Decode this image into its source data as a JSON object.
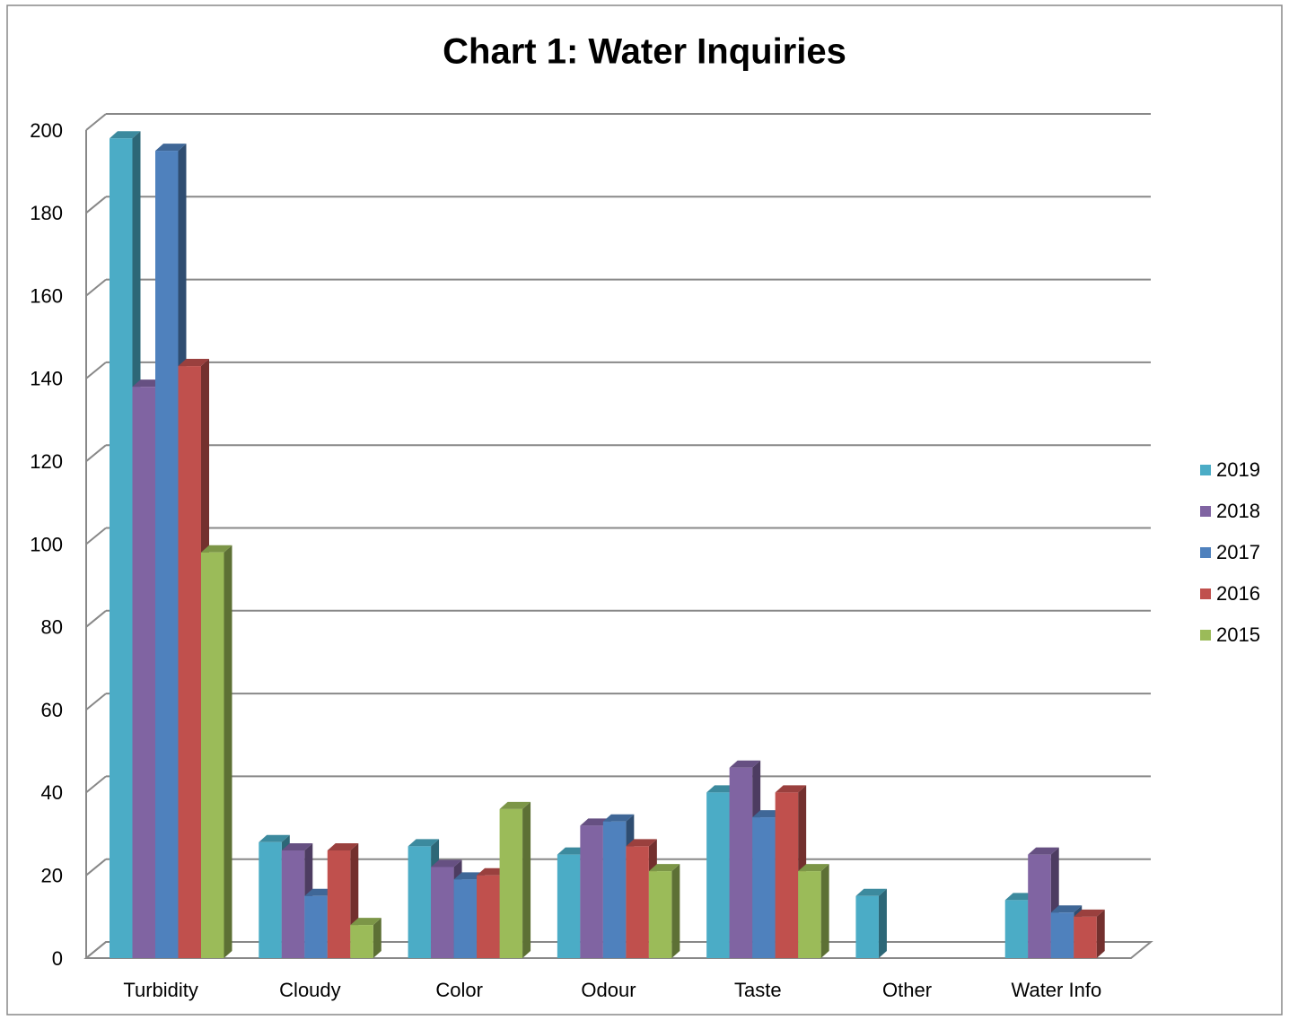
{
  "chart_data": {
    "type": "bar",
    "title": "Chart 1: Water Inquiries",
    "categories": [
      "Turbidity",
      "Cloudy",
      "Color",
      "Odour",
      "Taste",
      "Other",
      "Water Info"
    ],
    "series": [
      {
        "name": "2019",
        "color": "#4bacc6",
        "values": [
          198,
          28,
          27,
          25,
          40,
          15,
          14
        ]
      },
      {
        "name": "2018",
        "color": "#8064a2",
        "values": [
          138,
          26,
          22,
          32,
          46,
          0,
          25
        ]
      },
      {
        "name": "2017",
        "color": "#4f81bd",
        "values": [
          195,
          15,
          19,
          33,
          34,
          0,
          11
        ]
      },
      {
        "name": "2016",
        "color": "#c0504d",
        "values": [
          143,
          26,
          20,
          27,
          40,
          0,
          10
        ]
      },
      {
        "name": "2015",
        "color": "#9bbb59",
        "values": [
          98,
          8,
          36,
          21,
          21,
          0,
          0
        ]
      }
    ],
    "ylim": [
      0,
      200
    ],
    "yticks": [
      0,
      20,
      40,
      60,
      80,
      100,
      120,
      140,
      160,
      180,
      200
    ],
    "grid": true,
    "legend": "right"
  }
}
